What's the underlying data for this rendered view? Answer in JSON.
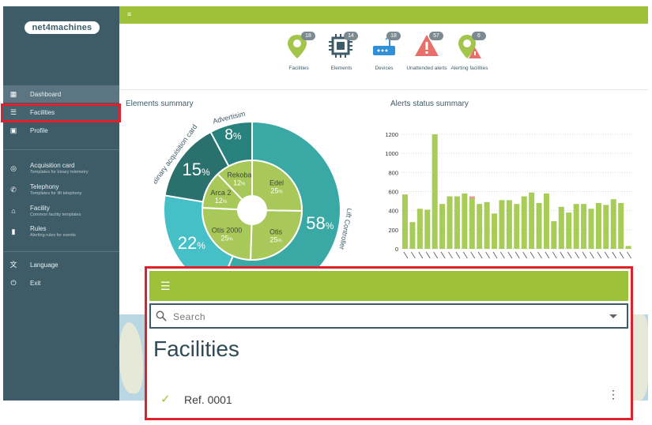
{
  "logo": "net4machines",
  "sidebar": {
    "items": [
      {
        "label": "Dashboard",
        "icon": "dashboard-icon"
      },
      {
        "label": "Facilities",
        "icon": "list-icon"
      },
      {
        "label": "Profile",
        "icon": "profile-icon"
      }
    ],
    "templates": [
      {
        "label": "Acquisition card",
        "sub": "Templates for binary telemetry",
        "icon": "target-icon"
      },
      {
        "label": "Telephony",
        "sub": "Templates for lift telephony",
        "icon": "phone-icon"
      },
      {
        "label": "Facility",
        "sub": "Common facility templates",
        "icon": "home-icon"
      },
      {
        "label": "Rules",
        "sub": "Alerting rules for events",
        "icon": "rules-icon"
      }
    ],
    "bottom": [
      {
        "label": "Language",
        "icon": "translate-icon"
      },
      {
        "label": "Exit",
        "icon": "power-icon"
      }
    ]
  },
  "stats": [
    {
      "label": "Facilities",
      "count": "18",
      "icon": "location-pin-icon"
    },
    {
      "label": "Elements",
      "count": "14",
      "icon": "chip-icon"
    },
    {
      "label": "Devices",
      "count": "18",
      "icon": "router-icon"
    },
    {
      "label": "Unattended alerts",
      "count": "57",
      "icon": "warning-icon"
    },
    {
      "label": "Alerting facilities",
      "count": "6",
      "icon": "alert-pin-icon"
    }
  ],
  "colors": {
    "accent": "#9dc23a",
    "sidebar": "#3d5c68",
    "highlight": "#e0202c"
  },
  "elements_summary": {
    "title": "Elements summary",
    "outer": [
      {
        "label": "Lift Controller",
        "value": 58,
        "text": "58",
        "color": "#3aa8a4"
      },
      {
        "label": "",
        "value": 22,
        "text": "22",
        "color": "#45c0c6"
      },
      {
        "label": "Binary acquisition card",
        "value": 15,
        "text": "15",
        "color": "#2a706c"
      },
      {
        "label": "Advertisim",
        "value": 8,
        "text": "8",
        "color": "#27827e"
      }
    ],
    "inner": [
      {
        "label": "Rekoba",
        "text": "12",
        "value": 12
      },
      {
        "label": "Edel",
        "text": "25",
        "value": 25
      },
      {
        "label": "Otis",
        "text": "25",
        "value": 25
      },
      {
        "label": "Otis 2000",
        "text": "25",
        "value": 25
      },
      {
        "label": "Arca 2",
        "text": "12",
        "value": 12
      }
    ],
    "inner_color": "#a8c85a",
    "pct": "%"
  },
  "chart_data": {
    "type": "bar",
    "title": "Alerts status summary",
    "ylim": [
      0,
      1200
    ],
    "yticks": [
      "0",
      "200",
      "400",
      "600",
      "800",
      "1000",
      "1200"
    ],
    "grid": true,
    "values": [
      570,
      280,
      420,
      410,
      1200,
      470,
      550,
      550,
      580,
      550,
      470,
      490,
      370,
      510,
      510,
      470,
      550,
      590,
      480,
      580,
      290,
      440,
      380,
      470,
      470,
      420,
      480,
      460,
      520,
      480,
      30
    ],
    "color": "#a8cc58",
    "accent_index": 9,
    "accent_color": "#e0a0a0"
  },
  "overlay": {
    "search_placeholder": "Search",
    "title": "Facilities",
    "row": "Ref. 0001"
  }
}
